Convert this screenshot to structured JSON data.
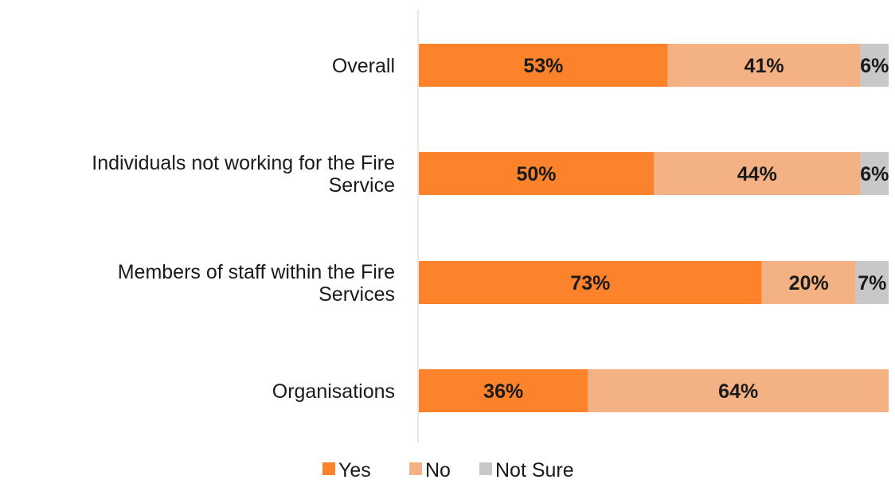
{
  "chart_data": {
    "type": "bar",
    "orientation": "horizontal",
    "stacked": true,
    "categories": [
      "Overall",
      "Individuals not working for the Fire Service",
      "Members of staff within the Fire Services",
      "Organisations"
    ],
    "category_lines": [
      [
        "Overall"
      ],
      [
        "Individuals not working for the Fire",
        "Service"
      ],
      [
        "Members of staff within the Fire",
        "Services"
      ],
      [
        "Organisations"
      ]
    ],
    "series": [
      {
        "name": "Yes",
        "color": "#fc822b",
        "values": [
          53,
          50,
          73,
          36
        ],
        "labels": [
          "53%",
          "50%",
          "73%",
          "36%"
        ]
      },
      {
        "name": "No",
        "color": "#f4b183",
        "values": [
          41,
          44,
          20,
          64
        ],
        "labels": [
          "41%",
          "44%",
          "20%",
          "64%"
        ]
      },
      {
        "name": "Not Sure",
        "color": "#c8c8c8",
        "values": [
          6,
          6,
          7,
          0
        ],
        "labels": [
          "6%",
          "6%",
          "7%",
          ""
        ]
      }
    ],
    "xlim": [
      0,
      100
    ],
    "grid": false,
    "legend": "bottom",
    "title": "",
    "xlabel": "",
    "ylabel": ""
  }
}
